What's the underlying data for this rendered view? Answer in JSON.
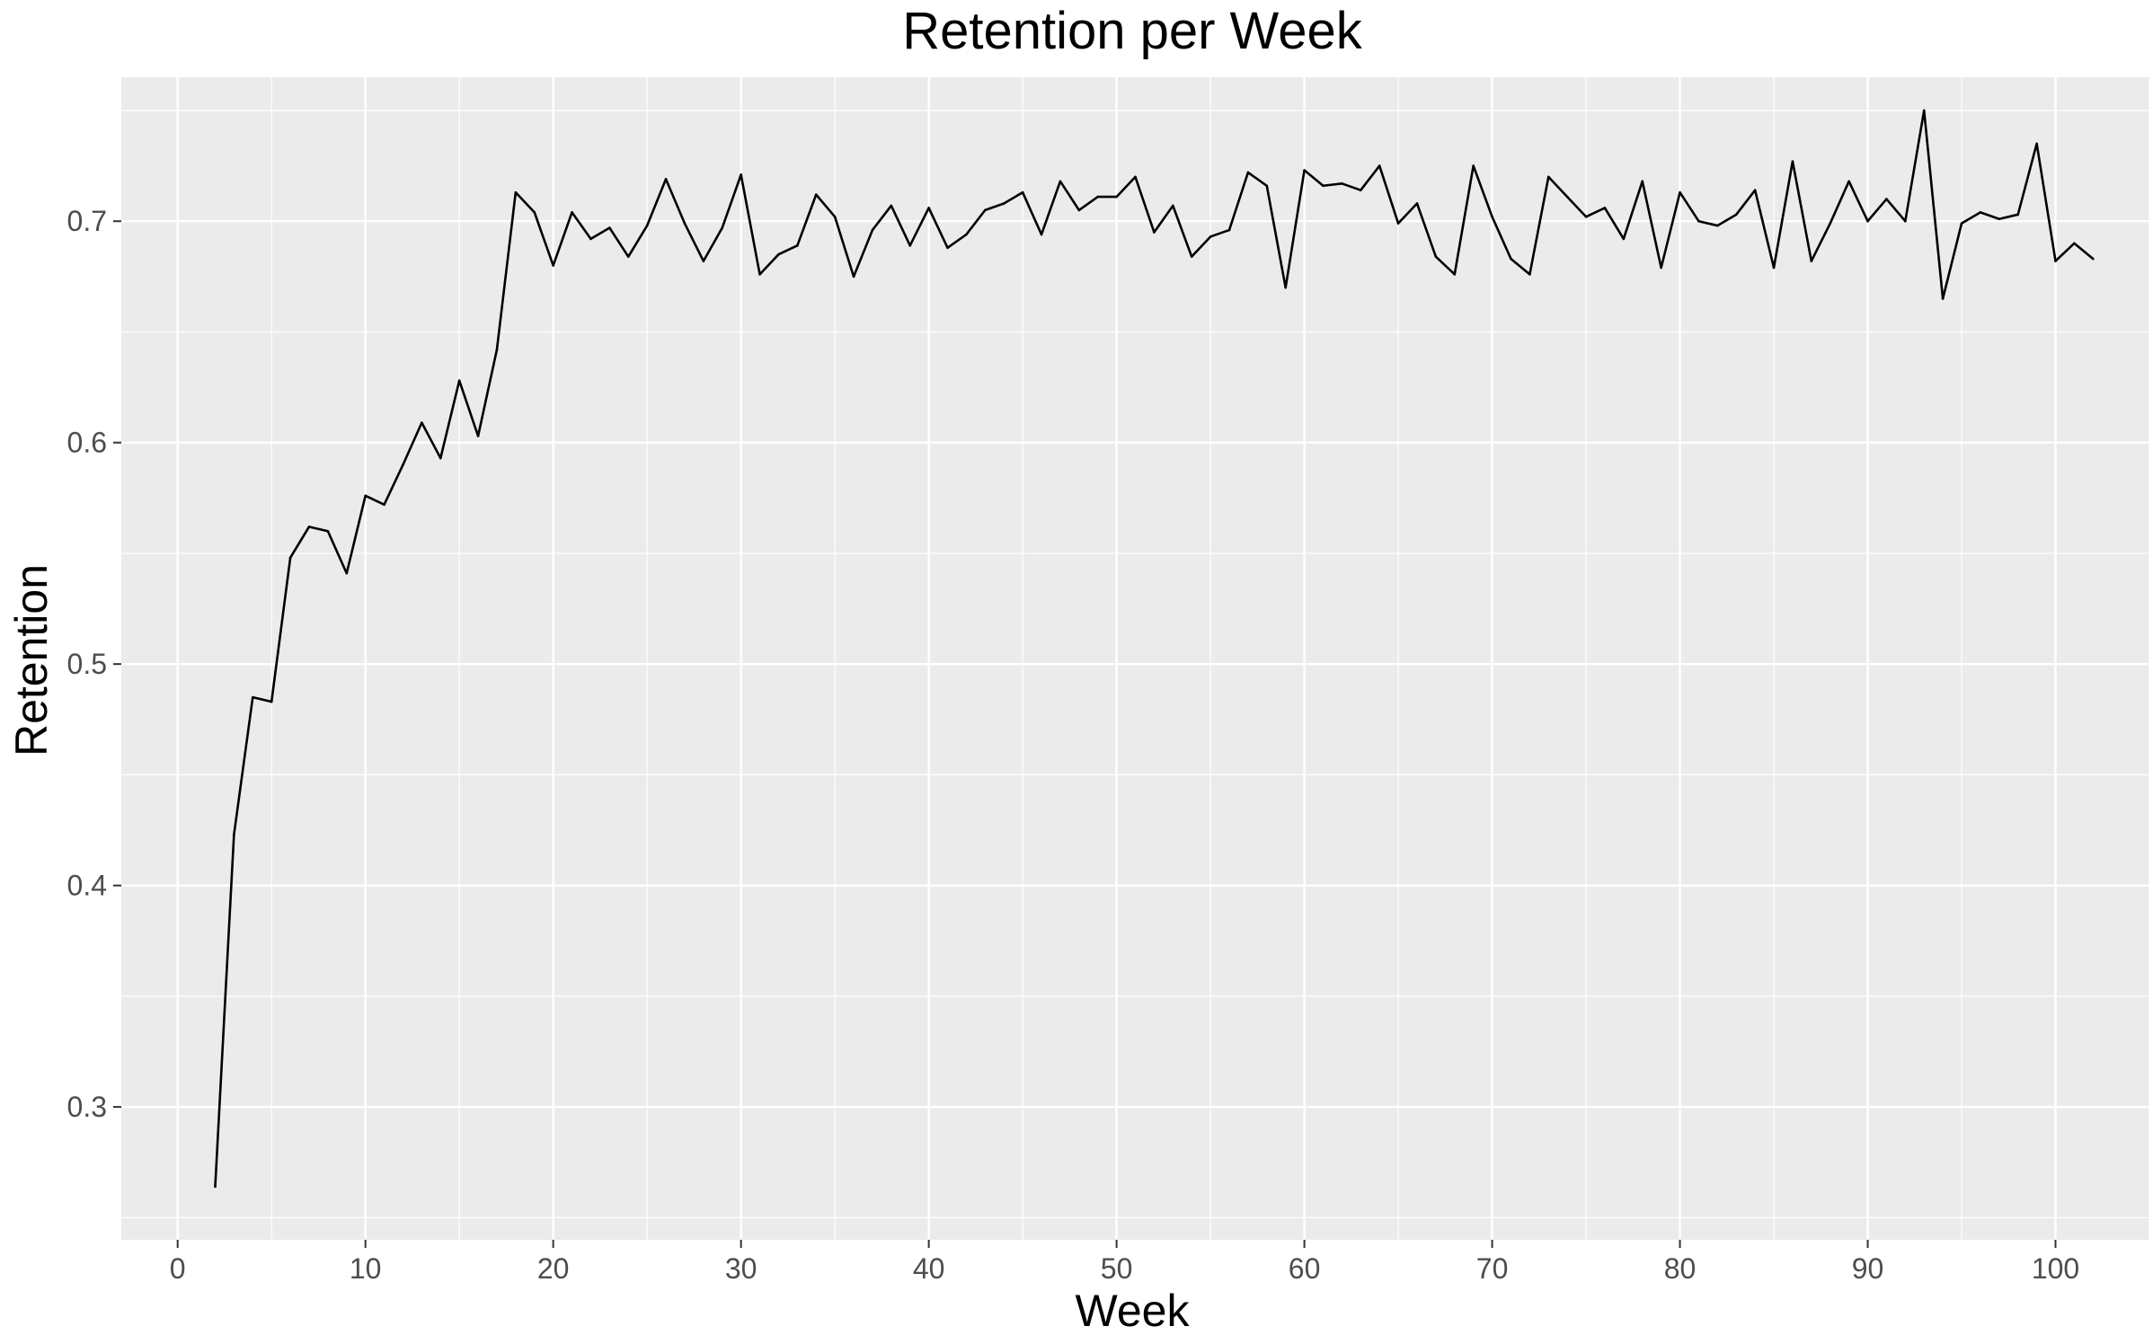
{
  "chart_data": {
    "type": "line",
    "title": "Retention per Week",
    "xlabel": "Week",
    "ylabel": "Retention",
    "xlim": [
      -3,
      105
    ],
    "ylim": [
      0.24,
      0.765
    ],
    "x_ticks": [
      0,
      10,
      20,
      30,
      40,
      50,
      60,
      70,
      80,
      90,
      100
    ],
    "y_ticks": [
      0.3,
      0.4,
      0.5,
      0.6,
      0.7
    ],
    "y_tick_labels": [
      "0.3",
      "0.4",
      "0.5",
      "0.6",
      "0.7"
    ],
    "x_minor_ticks": [
      -5,
      5,
      15,
      25,
      35,
      45,
      55,
      65,
      75,
      85,
      95,
      105
    ],
    "y_minor_ticks": [
      0.25,
      0.35,
      0.45,
      0.55,
      0.65,
      0.75
    ],
    "grid": true,
    "panel_background": "#ebebeb",
    "grid_color": "#ffffff",
    "line_color": "#000000",
    "series": [
      {
        "x": [
          2,
          3,
          4,
          5,
          6,
          7,
          8,
          9,
          10,
          11,
          12,
          13,
          14,
          15,
          16,
          17,
          18,
          19,
          20,
          21,
          22,
          23,
          24,
          25,
          26,
          27,
          28,
          29,
          30,
          31,
          32,
          33,
          34,
          35,
          36,
          37,
          38,
          39,
          40,
          41,
          42,
          43,
          44,
          45,
          46,
          47,
          48,
          49,
          50,
          51,
          52,
          53,
          54,
          55,
          56,
          57,
          58,
          59,
          60,
          61,
          62,
          63,
          64,
          65,
          66,
          67,
          68,
          69,
          70,
          71,
          72,
          73,
          74,
          75,
          76,
          77,
          78,
          79,
          80,
          81,
          82,
          83,
          84,
          85,
          86,
          87,
          88,
          89,
          90,
          91,
          92,
          93,
          94,
          95,
          96,
          97,
          98,
          99,
          100,
          101,
          102
        ],
        "y": [
          0.264,
          0.423,
          0.485,
          0.483,
          0.548,
          0.562,
          0.56,
          0.541,
          0.576,
          0.572,
          0.59,
          0.609,
          0.593,
          0.628,
          0.603,
          0.642,
          0.713,
          0.704,
          0.68,
          0.704,
          0.692,
          0.697,
          0.684,
          0.698,
          0.719,
          0.699,
          0.682,
          0.697,
          0.721,
          0.676,
          0.685,
          0.689,
          0.712,
          0.702,
          0.675,
          0.696,
          0.707,
          0.689,
          0.706,
          0.688,
          0.694,
          0.705,
          0.708,
          0.713,
          0.694,
          0.718,
          0.705,
          0.711,
          0.711,
          0.72,
          0.695,
          0.707,
          0.684,
          0.693,
          0.696,
          0.722,
          0.716,
          0.67,
          0.723,
          0.716,
          0.717,
          0.714,
          0.725,
          0.699,
          0.708,
          0.684,
          0.676,
          0.725,
          0.702,
          0.683,
          0.676,
          0.72,
          0.711,
          0.702,
          0.706,
          0.692,
          0.718,
          0.679,
          0.713,
          0.7,
          0.698,
          0.703,
          0.714,
          0.679,
          0.727,
          0.682,
          0.699,
          0.718,
          0.7,
          0.71,
          0.7,
          0.75,
          0.665,
          0.699,
          0.704,
          0.701,
          0.703,
          0.735,
          0.682,
          0.69,
          0.683
        ]
      }
    ]
  }
}
